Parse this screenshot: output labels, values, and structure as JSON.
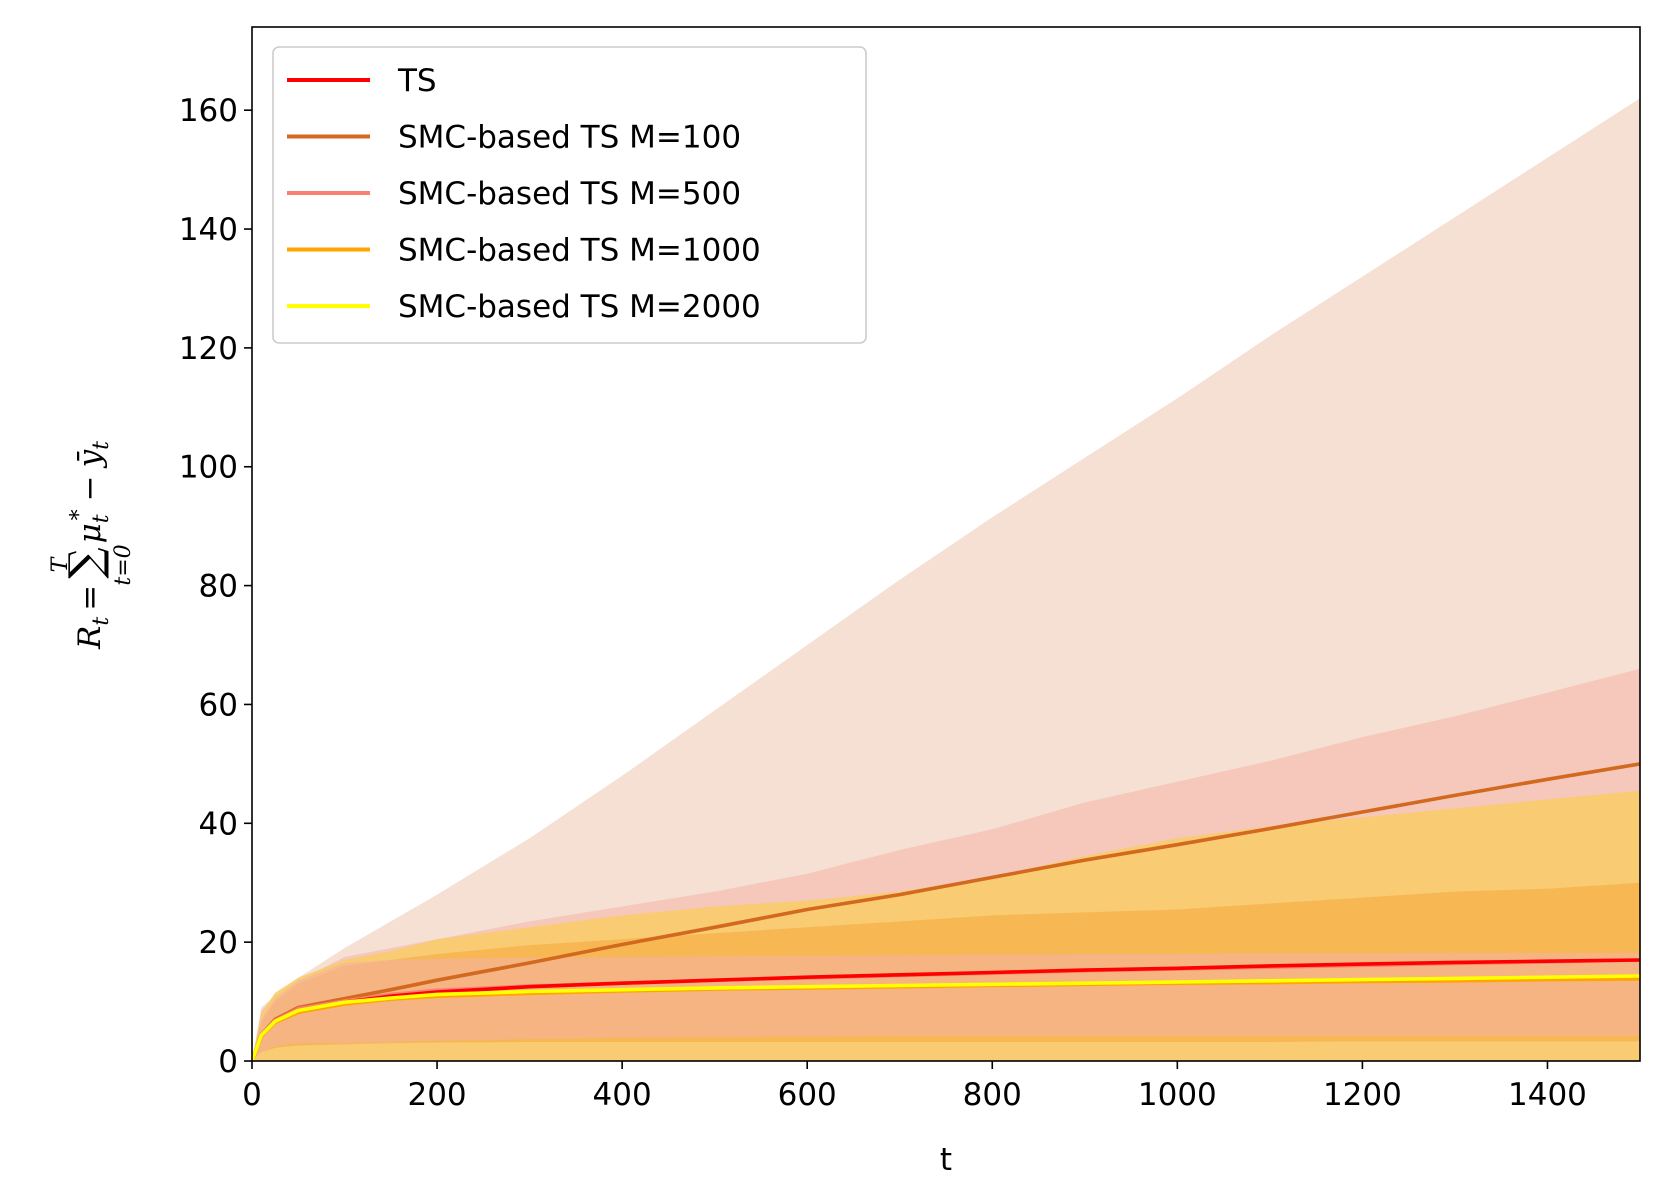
{
  "chart_data": {
    "type": "line",
    "title": "",
    "xlabel": "t",
    "ylabel_parts": {
      "lhs": "R",
      "lhs_sub": "t",
      "equals": "=",
      "sum": "∑",
      "sum_upper": "T",
      "sum_lower": "t=0",
      "mu": "μ",
      "mu_sub": "t",
      "mu_sup": "*",
      "minus": "−",
      "y": "ȳ",
      "y_sub": "t"
    },
    "xlim": [
      0,
      1500
    ],
    "ylim": [
      0,
      174
    ],
    "x_ticks": [
      0,
      200,
      400,
      600,
      800,
      1000,
      1200,
      1400
    ],
    "y_ticks": [
      0,
      20,
      40,
      60,
      80,
      100,
      120,
      140,
      160
    ],
    "grid": false,
    "legend_position": "top-left",
    "x": [
      0,
      10,
      25,
      50,
      100,
      150,
      200,
      300,
      400,
      500,
      600,
      700,
      800,
      900,
      1000,
      1100,
      1200,
      1300,
      1400,
      1500
    ],
    "series": [
      {
        "name": "TS",
        "color": "#ff0000",
        "mean": [
          0,
          4.2,
          6.6,
          8.4,
          9.9,
          10.9,
          11.6,
          12.5,
          13.1,
          13.6,
          14.1,
          14.5,
          14.9,
          15.3,
          15.6,
          16.0,
          16.3,
          16.6,
          16.8,
          17.0
        ],
        "lower": [
          0,
          1.5,
          2.5,
          3.0,
          3.0,
          3.2,
          3.4,
          3.7,
          3.9,
          4.0,
          4.1,
          4.2,
          4.2,
          4.2,
          4.2,
          4.2,
          4.2,
          4.2,
          4.2,
          4.2
        ],
        "upper": [
          0,
          7.0,
          10.5,
          13.5,
          16.5,
          17.0,
          17.2,
          17.4,
          17.5,
          17.6,
          17.7,
          17.8,
          17.9,
          18.0,
          18.0,
          18.1,
          18.1,
          18.2,
          18.2,
          18.2
        ],
        "band_color": "#f4b0a8"
      },
      {
        "name": "SMC-based TS M=100",
        "color": "#d2691e",
        "mean": [
          0,
          4.4,
          7.0,
          9.0,
          10.5,
          12.0,
          13.6,
          16.5,
          19.6,
          22.5,
          25.5,
          28.0,
          30.9,
          33.8,
          36.4,
          39.1,
          41.9,
          44.7,
          47.4,
          50.0
        ],
        "lower": [
          0,
          0,
          0,
          0,
          0,
          0,
          0,
          0,
          0,
          0,
          0,
          0,
          0,
          0,
          0,
          0,
          0,
          0,
          0,
          0
        ],
        "upper": [
          0,
          9.0,
          11.0,
          14.0,
          19.0,
          23.5,
          28.0,
          37.5,
          48.0,
          59.0,
          70.0,
          81.0,
          91.5,
          101.5,
          111.5,
          122.0,
          132.0,
          142.0,
          152.0,
          162.0
        ],
        "band_color": "#f3dacb"
      },
      {
        "name": "SMC-based TS M=500",
        "color": "#fa8072",
        "mean": [
          0,
          4.4,
          6.8,
          8.8,
          10.1,
          11.2,
          11.9,
          12.6,
          13.1,
          13.6,
          14.0,
          14.4,
          14.8,
          15.2,
          15.5,
          15.8,
          16.1,
          16.4,
          16.7,
          17.0
        ],
        "lower": [
          0,
          0,
          0,
          0,
          0,
          0,
          0,
          0,
          0,
          0,
          0,
          0,
          0,
          0,
          0,
          0,
          0,
          0,
          0,
          0
        ],
        "upper": [
          0,
          8.5,
          11.0,
          13.5,
          17.5,
          19.0,
          20.5,
          23.5,
          26.0,
          28.5,
          31.5,
          35.5,
          39.0,
          43.5,
          47.0,
          50.5,
          54.5,
          58.0,
          62.0,
          66.0
        ],
        "band_color": "#f5c3b6"
      },
      {
        "name": "SMC-based TS M=1000",
        "color": "#ffa500",
        "mean": [
          0,
          4.2,
          6.5,
          8.2,
          9.6,
          10.4,
          10.9,
          11.4,
          11.8,
          12.1,
          12.3,
          12.5,
          12.7,
          12.9,
          13.1,
          13.2,
          13.4,
          13.5,
          13.7,
          13.8
        ],
        "lower": [
          0,
          0,
          0,
          0,
          0,
          0,
          0,
          0,
          0,
          0,
          0,
          0,
          0,
          0,
          0,
          0,
          0,
          0,
          0,
          0
        ],
        "upper": [
          0,
          8.0,
          11.5,
          14.0,
          17.0,
          18.5,
          20.5,
          22.5,
          24.5,
          26.0,
          27.0,
          28.5,
          31.0,
          34.5,
          37.5,
          39.5,
          41.0,
          42.5,
          44.0,
          45.5
        ],
        "band_color": "#f9cb66"
      },
      {
        "name": "SMC-based TS M=2000",
        "color": "#ffff00",
        "mean": [
          0,
          4.3,
          6.7,
          8.5,
          9.9,
          10.6,
          11.2,
          11.7,
          12.0,
          12.3,
          12.5,
          12.7,
          12.9,
          13.1,
          13.3,
          13.5,
          13.7,
          13.9,
          14.1,
          14.3
        ],
        "lower": [
          0,
          1.5,
          2.2,
          2.6,
          2.8,
          3.0,
          3.1,
          3.2,
          3.2,
          3.2,
          3.2,
          3.2,
          3.2,
          3.2,
          3.2,
          3.2,
          3.3,
          3.3,
          3.3,
          3.3
        ],
        "upper": [
          0,
          6.5,
          10.0,
          13.0,
          16.0,
          17.0,
          18.0,
          19.5,
          20.5,
          21.5,
          22.5,
          23.5,
          24.5,
          25.0,
          25.5,
          26.5,
          27.5,
          28.5,
          29.0,
          30.0
        ],
        "band_color": "#f7b54f"
      }
    ]
  }
}
